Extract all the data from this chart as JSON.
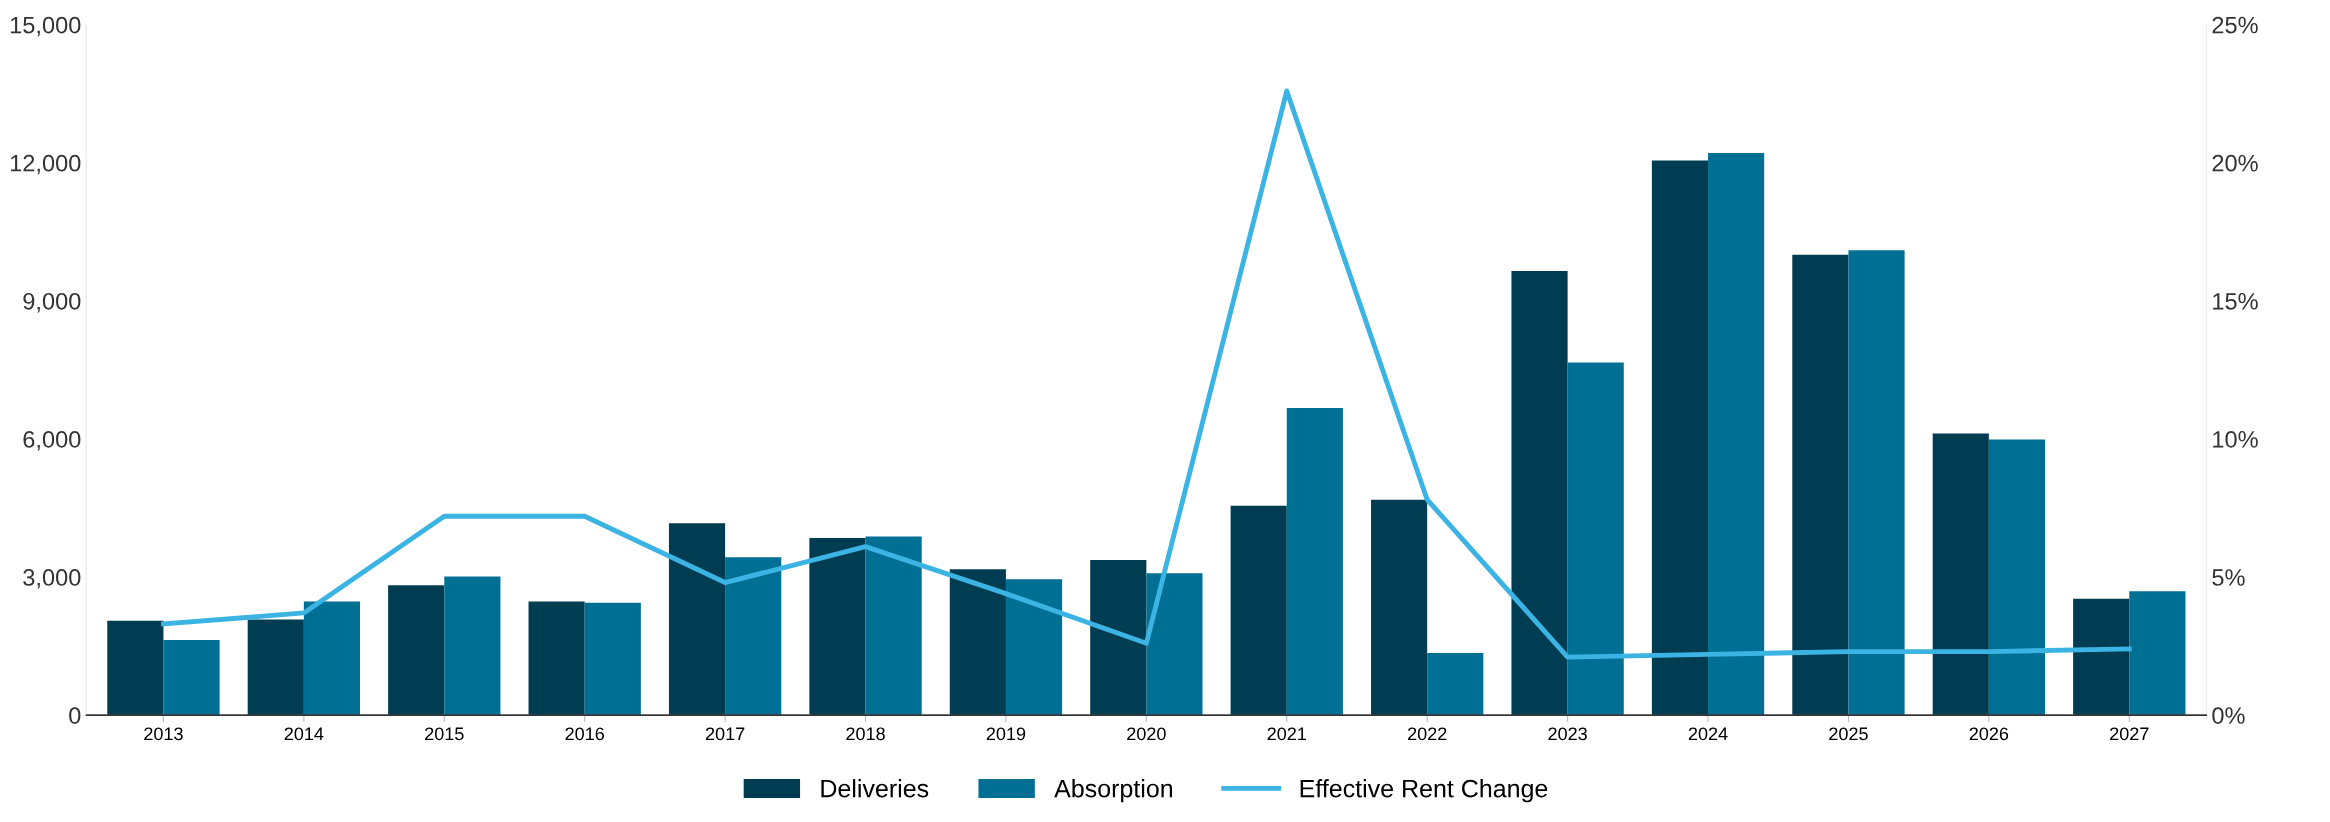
{
  "chart_data": {
    "type": "bar",
    "categories": [
      "2013",
      "2014",
      "2015",
      "2016",
      "2017",
      "2018",
      "2019",
      "2020",
      "2021",
      "2022",
      "2023",
      "2024",
      "2025",
      "2026",
      "2027"
    ],
    "series": [
      {
        "name": "Deliveries",
        "color": "#003d52",
        "values": [
          2050,
          2080,
          2820,
          2470,
          4170,
          3850,
          3170,
          3370,
          4550,
          4680,
          9650,
          12050,
          10000,
          6120,
          2530
        ]
      },
      {
        "name": "Absorption",
        "color": "#006f94",
        "values": [
          1630,
          2470,
          3010,
          2440,
          3430,
          3880,
          2950,
          3080,
          6670,
          1350,
          7660,
          12210,
          10100,
          5990,
          2690
        ]
      },
      {
        "name": "Effective Rent Change",
        "type": "line",
        "axis": "y2",
        "color": "#3bb3e3",
        "values": [
          3.3,
          3.7,
          7.2,
          7.2,
          4.8,
          6.1,
          4.4,
          2.6,
          22.6,
          7.8,
          2.1,
          2.2,
          2.3,
          2.3,
          2.4
        ]
      }
    ],
    "ylim": [
      0,
      15000
    ],
    "yticks": [
      0,
      {
        "value": 3000,
        "label": "3,000"
      },
      {
        "value": 6000,
        "label": "6,000"
      },
      {
        "value": 9000,
        "label": "9,000"
      },
      {
        "value": 12000,
        "label": "12,000"
      },
      {
        "value": 15000,
        "label": "15,000"
      }
    ],
    "y2lim": [
      0,
      25
    ],
    "y2ticks": [
      {
        "value": 0,
        "label": "0%"
      },
      {
        "value": 5,
        "label": "5%"
      },
      {
        "value": 10,
        "label": "10%"
      },
      {
        "value": 15,
        "label": "15%"
      },
      {
        "value": 20,
        "label": "20%"
      },
      {
        "value": 25,
        "label": "25%"
      }
    ],
    "legend": "bottom",
    "grid": false
  }
}
